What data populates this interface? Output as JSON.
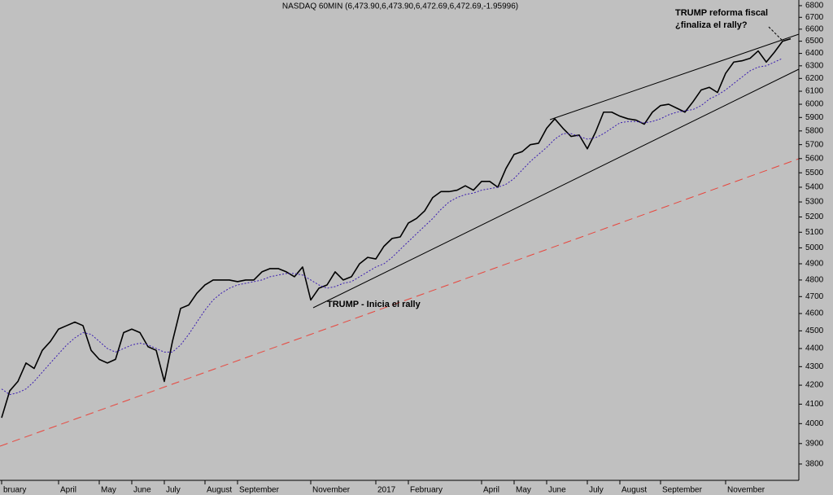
{
  "chart_data": {
    "type": "line",
    "title": "NASDAQ 60MIN (6,473.90,6,473.90,6,472.69,6,472.69,-1.95996)",
    "annotations": [
      "TRUMP - Inicia el rally",
      "TRUMP reforma fiscal",
      "¿finaliza el rally?"
    ],
    "log_scale": true,
    "ylim": [
      3722,
      6849
    ],
    "yticks": [
      3800,
      3900,
      4000,
      4100,
      4200,
      4300,
      4400,
      4500,
      4600,
      4700,
      4800,
      4900,
      5000,
      5100,
      5200,
      5300,
      5400,
      5500,
      5600,
      5700,
      5800,
      5900,
      6000,
      6100,
      6200,
      6300,
      6400,
      6500,
      6600,
      6700,
      6800
    ],
    "categories": [
      "bruary",
      null,
      null,
      null,
      null,
      null,
      null,
      "April",
      null,
      null,
      null,
      null,
      "May",
      null,
      null,
      null,
      "June",
      null,
      null,
      null,
      "July",
      null,
      null,
      null,
      null,
      "August",
      null,
      null,
      null,
      "September",
      null,
      null,
      null,
      null,
      null,
      null,
      null,
      null,
      "November",
      null,
      null,
      null,
      null,
      null,
      null,
      null,
      "2017",
      null,
      null,
      null,
      "February",
      null,
      null,
      null,
      null,
      null,
      null,
      null,
      null,
      "April",
      null,
      null,
      null,
      "May",
      null,
      null,
      null,
      "June",
      null,
      null,
      null,
      null,
      "July",
      null,
      null,
      null,
      "August",
      null,
      null,
      null,
      null,
      "September",
      null,
      null,
      null,
      null,
      null,
      null,
      null,
      "November",
      null,
      null,
      null,
      null,
      null,
      null,
      null,
      null
    ],
    "series": [
      {
        "name": "Price",
        "color": "#000000",
        "values": [
          4030,
          4170,
          4220,
          4320,
          4290,
          4390,
          4440,
          4510,
          4530,
          4550,
          4530,
          4390,
          4340,
          4320,
          4340,
          4490,
          4510,
          4490,
          4410,
          4390,
          4220,
          4440,
          4630,
          4650,
          4720,
          4770,
          4800,
          4800,
          4800,
          4790,
          4800,
          4800,
          4850,
          4870,
          4870,
          4850,
          4820,
          4880,
          4680,
          4750,
          4770,
          4850,
          4800,
          4820,
          4900,
          4940,
          4930,
          5010,
          5060,
          5070,
          5160,
          5190,
          5240,
          5330,
          5370,
          5370,
          5380,
          5410,
          5380,
          5440,
          5440,
          5400,
          5530,
          5630,
          5650,
          5700,
          5710,
          5820,
          5890,
          5820,
          5760,
          5770,
          5670,
          5790,
          5940,
          5940,
          5910,
          5890,
          5880,
          5850,
          5940,
          5990,
          6000,
          5970,
          5940,
          6020,
          6110,
          6130,
          6090,
          6240,
          6330,
          6340,
          6360,
          6420,
          6330,
          6410,
          6500,
          6520
        ]
      },
      {
        "name": "Moving average",
        "color": "#3a1cb0",
        "values": [
          4180,
          4150,
          4160,
          4180,
          4220,
          4270,
          4320,
          4370,
          4420,
          4460,
          4490,
          4480,
          4440,
          4400,
          4380,
          4400,
          4420,
          4430,
          4420,
          4400,
          4380,
          4380,
          4420,
          4480,
          4550,
          4620,
          4680,
          4720,
          4750,
          4770,
          4780,
          4790,
          4800,
          4820,
          4830,
          4840,
          4840,
          4830,
          4800,
          4770,
          4750,
          4760,
          4780,
          4790,
          4820,
          4850,
          4880,
          4900,
          4940,
          4990,
          5040,
          5090,
          5140,
          5190,
          5250,
          5300,
          5330,
          5350,
          5360,
          5380,
          5390,
          5400,
          5420,
          5460,
          5520,
          5580,
          5630,
          5680,
          5740,
          5780,
          5780,
          5760,
          5740,
          5750,
          5780,
          5820,
          5860,
          5870,
          5870,
          5860,
          5870,
          5890,
          5920,
          5940,
          5950,
          5960,
          5990,
          6040,
          6070,
          6110,
          6160,
          6210,
          6260,
          6290,
          6300,
          6330,
          6360,
          null
        ]
      }
    ]
  }
}
